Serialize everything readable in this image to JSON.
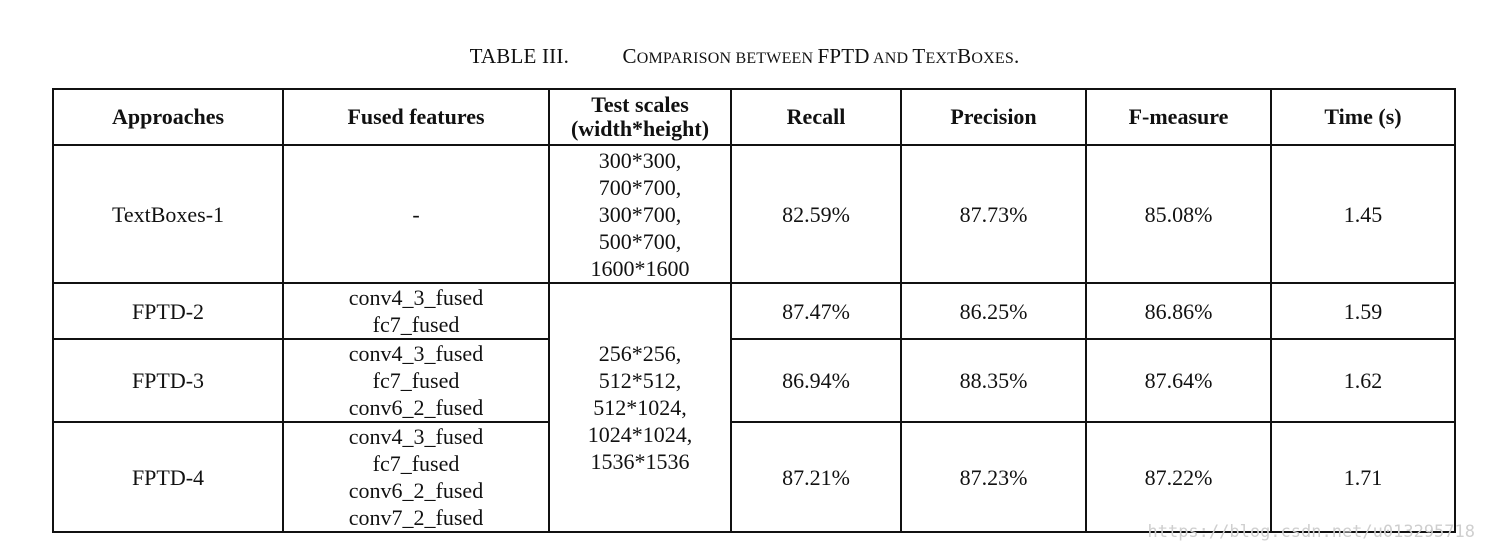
{
  "caption": {
    "label": "TABLE III.",
    "title_parts": [
      {
        "text": "C",
        "big": true
      },
      {
        "text": "OMPARISON BETWEEN ",
        "big": false
      },
      {
        "text": "FPTD",
        "big": true
      },
      {
        "text": " AND ",
        "big": false
      },
      {
        "text": "T",
        "big": true
      },
      {
        "text": "EXT",
        "big": false
      },
      {
        "text": "B",
        "big": true
      },
      {
        "text": "OXES",
        "big": false
      },
      {
        "text": ".",
        "big": true
      }
    ]
  },
  "headers": {
    "approaches": "Approaches",
    "fused_features": "Fused features",
    "test_scales_line1": "Test scales",
    "test_scales_line2": "(width*height)",
    "recall": "Recall",
    "precision": "Precision",
    "f_measure": "F-measure",
    "time": "Time (s)"
  },
  "rows": [
    {
      "approach": "TextBoxes-1",
      "fused": [
        "-"
      ],
      "scales": [
        "300*300,",
        "700*700,",
        "300*700,",
        "500*700,",
        "1600*1600"
      ],
      "recall": "82.59%",
      "precision": "87.73%",
      "f_measure": "85.08%",
      "time": "1.45"
    },
    {
      "approach": "FPTD-2",
      "fused": [
        "conv4_3_fused",
        "fc7_fused"
      ],
      "recall": "87.47%",
      "precision": "86.25%",
      "f_measure": "86.86%",
      "time": "1.59"
    },
    {
      "approach": "FPTD-3",
      "fused": [
        "conv4_3_fused",
        "fc7_fused",
        "conv6_2_fused"
      ],
      "recall": "86.94%",
      "precision": "88.35%",
      "f_measure": "87.64%",
      "time": "1.62"
    },
    {
      "approach": "FPTD-4",
      "fused": [
        "conv4_3_fused",
        "fc7_fused",
        "conv6_2_fused",
        "conv7_2_fused"
      ],
      "recall": "87.21%",
      "precision": "87.23%",
      "f_measure": "87.22%",
      "time": "1.71"
    }
  ],
  "shared_scales": [
    "256*256,",
    "512*512,",
    "512*1024,",
    "1024*1024,",
    "1536*1536"
  ],
  "watermark": "https://blog.csdn.net/u013295718"
}
